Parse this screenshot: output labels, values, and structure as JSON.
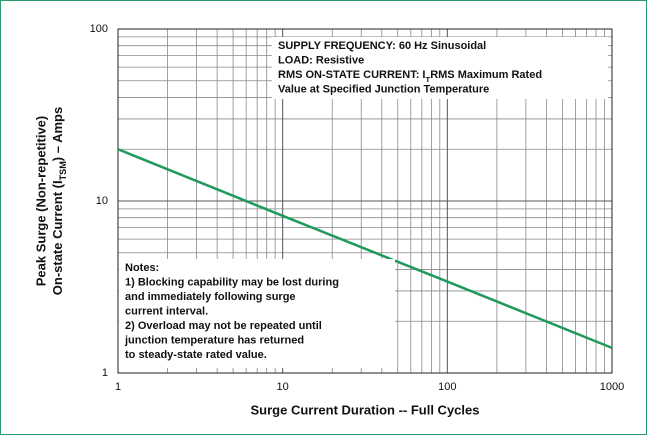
{
  "chart_data": {
    "type": "line",
    "xlabel": "Surge Current Duration -- Full Cycles",
    "ylabel": [
      "Peak Surge (Non-repetitive)",
      {
        "text": "On-state Current (I",
        "sub": "TSM",
        "after": ") – Amps"
      }
    ],
    "x": [
      1,
      10,
      100,
      1000
    ],
    "values": [
      20,
      8.2,
      3.4,
      1.4
    ],
    "color": "#1f9a5c",
    "xscale": "log",
    "yscale": "log",
    "xlim": [
      1,
      1000
    ],
    "ylim": [
      1,
      100
    ],
    "xticks": [
      1,
      10,
      100,
      1000
    ],
    "yticks": [
      1,
      10,
      100
    ],
    "x_minor_ticks": [
      2,
      3,
      4,
      5,
      6,
      7,
      8,
      9,
      20,
      30,
      40,
      50,
      60,
      70,
      80,
      90,
      200,
      300,
      400,
      500,
      600,
      700,
      800,
      900
    ],
    "y_minor_ticks": [
      2,
      3,
      4,
      5,
      6,
      7,
      8,
      9,
      20,
      30,
      40,
      50,
      60,
      70,
      80,
      90
    ],
    "grid": true,
    "annotations": [
      {
        "lines": [
          "SUPPLY FREQUENCY: 60 Hz Sinusoidal",
          "LOAD: Resistive",
          {
            "text": "RMS ON-STATE CURRENT: I",
            "sub": "T",
            "after": "RMS Maximum Rated"
          },
          "Value at Specified Junction Temperature"
        ]
      },
      {
        "lines": [
          "Notes:",
          "1) Blocking capability may be lost during",
          "and immediately following surge",
          "current interval.",
          "2) Overload may not be repeated until",
          "junction temperature has returned",
          "to steady-state rated value."
        ]
      }
    ]
  }
}
